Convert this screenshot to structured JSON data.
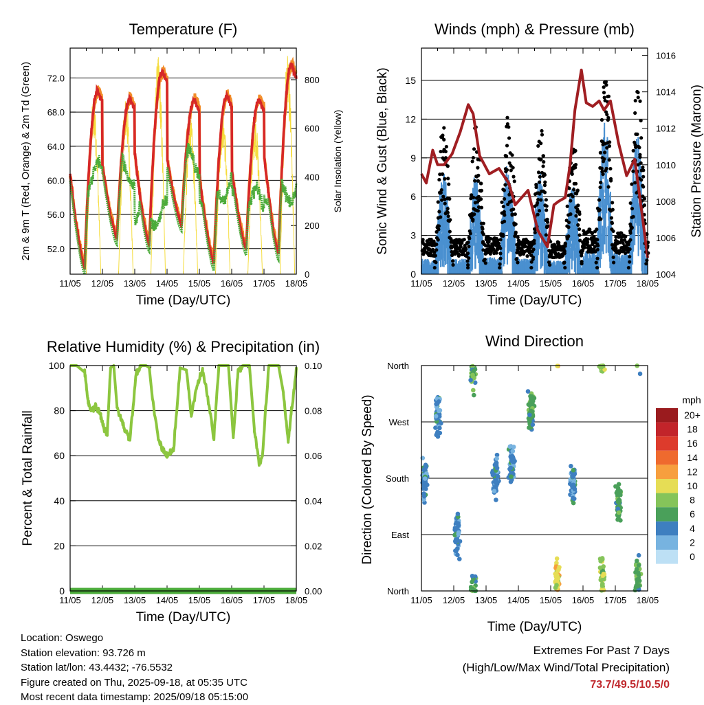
{
  "x_ticks": [
    "11/05",
    "12/05",
    "13/05",
    "14/05",
    "15/05",
    "16/05",
    "17/05",
    "18/05"
  ],
  "footer": {
    "location": "Location: Oswego",
    "elevation": "Station elevation: 93.726 m",
    "latlon": "Station lat/lon: 43.4432; -76.5532",
    "created": "Figure created on Thu, 2025-09-18, at 05:35 UTC",
    "recent": "Most recent data timestamp: 2025/09/18 05:15:00",
    "extremes_title": "Extremes For Past 7 Days",
    "extremes_sub": "(High/Low/Max Wind/Total Precipitation)",
    "extremes_values": "73.7/49.5/10.5/0"
  },
  "chart_data": [
    {
      "type": "line",
      "title": "Temperature (F)",
      "xlabel": "Time (Day/UTC)",
      "ylabel": "2m & 9m T (Red, Orange) & 2m Td (Green)",
      "ylabel_right": "Solar Insolation (Yellow)",
      "x_range_days": [
        0,
        7
      ],
      "ylim": [
        49,
        75.5
      ],
      "ylim_right": [
        0,
        930
      ],
      "y_ticks": [
        "52.0",
        "56.0",
        "60.0",
        "64.0",
        "68.0",
        "72.0"
      ],
      "y_ticks_right": [
        "0",
        "200",
        "400",
        "600",
        "800"
      ],
      "grid": "horizontal",
      "colors": {
        "t2m": "#d62728",
        "t9m": "#f28c28",
        "td": "#4bab3a",
        "solar": "#f5dc3c"
      },
      "daily_min_t": [
        49.8,
        53.2,
        52.4,
        54.8,
        50.2,
        52.0,
        51.4,
        50.4
      ],
      "daily_max_t": [
        70.5,
        69.5,
        72.8,
        69.5,
        70.0,
        69.5,
        73.7
      ],
      "daily_td_mean": [
        60.5,
        61.0,
        56.0,
        62.0,
        59.0,
        57.5,
        59.0
      ],
      "daily_solar_max": [
        730,
        730,
        895,
        640,
        680,
        650,
        900
      ]
    },
    {
      "type": "scatter",
      "title": "Winds (mph) & Pressure (mb)",
      "xlabel": "Time (Day/UTC)",
      "ylabel": "Sonic Wind & Gust (Blue, Black)",
      "ylabel_right": "Station Pressure (Maroon)",
      "x_range_days": [
        0,
        7
      ],
      "ylim": [
        0,
        17.5
      ],
      "ylim_right": [
        1004,
        1016.4
      ],
      "y_ticks": [
        "0",
        "3",
        "6",
        "9",
        "12",
        "15"
      ],
      "y_ticks_right": [
        "1004",
        "1006",
        "1008",
        "1010",
        "1012",
        "1014",
        "1016"
      ],
      "grid": "horizontal",
      "colors": {
        "wind": "#4a90d0",
        "gust": "#000000",
        "pressure": "#a01e22"
      },
      "pressure_series": {
        "x": [
          0,
          0.15,
          0.35,
          0.5,
          0.7,
          0.95,
          1.2,
          1.45,
          1.6,
          1.8,
          2.1,
          2.4,
          2.7,
          2.9,
          3.1,
          3.3,
          3.6,
          3.9,
          4.1,
          4.25,
          4.45,
          4.6,
          4.75,
          4.95,
          5.1,
          5.3,
          5.5,
          5.65,
          5.85,
          6.1,
          6.35,
          6.6,
          6.85,
          7.0
        ],
        "y": [
          1009.5,
          1009.0,
          1010.8,
          1010.0,
          1010.0,
          1010.6,
          1011.8,
          1013.3,
          1012.8,
          1010.5,
          1009.5,
          1009.8,
          1009.0,
          1007.8,
          1008.2,
          1008.6,
          1006.4,
          1005.5,
          1007.8,
          1008.0,
          1008.2,
          1010.0,
          1013.0,
          1015.2,
          1013.4,
          1013.2,
          1013.5,
          1013.0,
          1013.5,
          1011.2,
          1009.4,
          1010.3,
          1007.0,
          1004.9
        ]
      },
      "wind_hourly_max": [
        8,
        8,
        9,
        8,
        7,
        12,
        11,
        9
      ]
    },
    {
      "type": "line",
      "title": "Relative Humidity (%) & Precipitation (in)",
      "xlabel": "Time (Day/UTC)",
      "ylabel": "Percent & Total Rainfall",
      "x_range_days": [
        0,
        7
      ],
      "ylim": [
        0,
        100
      ],
      "ylim_right": [
        0,
        0.1
      ],
      "y_ticks": [
        "0",
        "20",
        "40",
        "60",
        "80",
        "100"
      ],
      "y_ticks_right": [
        "0.00",
        "0.02",
        "0.04",
        "0.06",
        "0.08",
        "0.10"
      ],
      "grid": "horizontal",
      "colors": {
        "rh": "#8cc63f",
        "precip": "#4bab3a"
      },
      "rh_series": {
        "x": [
          0,
          0.2,
          0.45,
          0.55,
          0.65,
          0.8,
          0.95,
          1.05,
          1.15,
          1.25,
          1.35,
          1.45,
          1.6,
          1.75,
          1.85,
          2.05,
          2.2,
          2.35,
          2.45,
          2.55,
          2.75,
          2.9,
          3.0,
          3.2,
          3.4,
          3.6,
          3.75,
          3.95,
          4.1,
          4.3,
          4.45,
          4.6,
          4.7,
          4.9,
          5.05,
          5.2,
          5.35,
          5.55,
          5.7,
          5.85,
          5.95,
          6.15,
          6.3,
          6.45,
          6.6,
          6.75,
          6.85,
          7.0
        ],
        "y": [
          100,
          100,
          97,
          85,
          80,
          82,
          78,
          72,
          70,
          99,
          100,
          82,
          75,
          70,
          68,
          97,
          100,
          100,
          99,
          85,
          66,
          62,
          60,
          62,
          99,
          98,
          78,
          92,
          98,
          82,
          68,
          100,
          100,
          100,
          68,
          98,
          100,
          100,
          72,
          56,
          60,
          100,
          100,
          100,
          88,
          66,
          80,
          98
        ],
        "precip_total": 0.0
      }
    },
    {
      "type": "scatter",
      "title": "Wind Direction",
      "xlabel": "Time (Day/UTC)",
      "ylabel": "Direction (Colored By Speed)",
      "x_range_days": [
        0,
        7
      ],
      "y_ticks": [
        "North",
        "East",
        "South",
        "West",
        "North"
      ],
      "ylim_deg": [
        0,
        360
      ],
      "grid": "horizontal",
      "legend_title": "mph",
      "legend_placement": "right",
      "legend_labels": [
        "20+",
        "18",
        "16",
        "14",
        "12",
        "10",
        "8",
        "6",
        "4",
        "2",
        "0"
      ],
      "legend_colors": [
        "#9a1b1e",
        "#c2242a",
        "#dd3b2c",
        "#ef6a2e",
        "#f79f3e",
        "#e6dd55",
        "#85c45a",
        "#4aa05a",
        "#3e7fc0",
        "#77b3e0",
        "#bde0f5"
      ],
      "direction_clusters": [
        {
          "day": 0.1,
          "dir_deg": 180,
          "speed": 4
        },
        {
          "day": 0.5,
          "dir_deg": 280,
          "speed": 4
        },
        {
          "day": 1.1,
          "dir_deg": 90,
          "speed": 4
        },
        {
          "day": 1.6,
          "dir_deg": 355,
          "speed": 6
        },
        {
          "day": 2.3,
          "dir_deg": 180,
          "speed": 4
        },
        {
          "day": 2.8,
          "dir_deg": 200,
          "speed": 4
        },
        {
          "day": 3.4,
          "dir_deg": 290,
          "speed": 6
        },
        {
          "day": 4.2,
          "dir_deg": 20,
          "speed": 10
        },
        {
          "day": 4.7,
          "dir_deg": 170,
          "speed": 4
        },
        {
          "day": 5.6,
          "dir_deg": 20,
          "speed": 8
        },
        {
          "day": 6.1,
          "dir_deg": 140,
          "speed": 6
        },
        {
          "day": 6.7,
          "dir_deg": 20,
          "speed": 6
        }
      ]
    }
  ]
}
